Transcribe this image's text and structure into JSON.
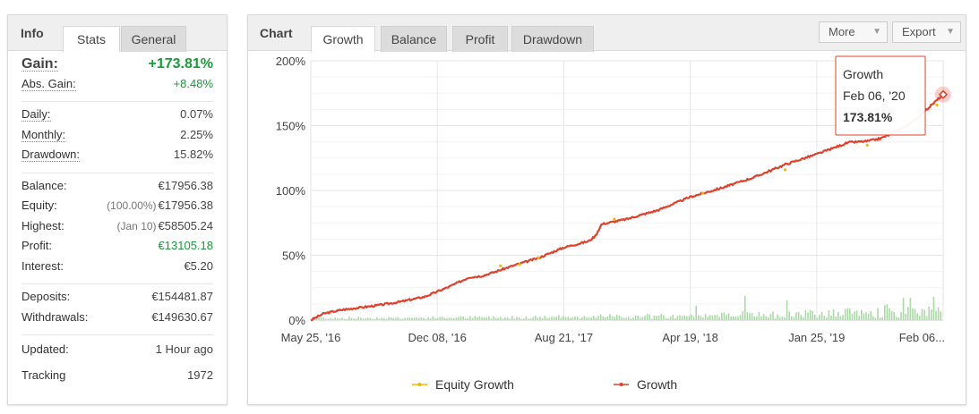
{
  "info": {
    "title": "Info",
    "tabs": [
      {
        "label": "Stats",
        "active": true
      },
      {
        "label": "General",
        "active": false
      }
    ],
    "gain": {
      "label": "Gain:",
      "value": "+173.81%"
    },
    "abs_gain": {
      "label": "Abs. Gain:",
      "value": "+8.48%"
    },
    "daily": {
      "label": "Daily:",
      "value": "0.07%"
    },
    "monthly": {
      "label": "Monthly:",
      "value": "2.25%"
    },
    "drawdown": {
      "label": "Drawdown:",
      "value": "15.82%"
    },
    "balance": {
      "label": "Balance:",
      "value": "€17956.38"
    },
    "equity": {
      "label": "Equity:",
      "note": "(100.00%)",
      "value": "€17956.38"
    },
    "highest": {
      "label": "Highest:",
      "note": "(Jan 10)",
      "value": "€58505.24"
    },
    "profit": {
      "label": "Profit:",
      "value": "€13105.18"
    },
    "interest": {
      "label": "Interest:",
      "value": "€5.20"
    },
    "deposits": {
      "label": "Deposits:",
      "value": "€154481.87"
    },
    "withdrawals": {
      "label": "Withdrawals:",
      "value": "€149630.67"
    },
    "updated": {
      "label": "Updated:",
      "value": "1 Hour ago"
    },
    "tracking": {
      "label": "Tracking",
      "value": "1972"
    }
  },
  "chart_panel": {
    "title": "Chart",
    "tabs": [
      {
        "label": "Growth",
        "active": true
      },
      {
        "label": "Balance",
        "active": false
      },
      {
        "label": "Profit",
        "active": false
      },
      {
        "label": "Drawdown",
        "active": false
      }
    ],
    "more_label": "More",
    "export_label": "Export",
    "caret_glyph": "▼"
  },
  "tooltip": {
    "series": "Growth",
    "date": "Feb 06, '20",
    "value": "173.81%"
  },
  "colors": {
    "growth": "#e2402b",
    "equity": "#f5b800",
    "bars": "#a9dba5",
    "positive": "#1a9a3a"
  },
  "chart_data": {
    "type": "line",
    "y_ticks": [
      "0%",
      "50%",
      "100%",
      "150%",
      "200%"
    ],
    "x_ticks": [
      "May 25, '16",
      "Dec 08, '16",
      "Aug 21, '17",
      "Apr 19, '18",
      "Jan 25, '19",
      "Feb 06..."
    ],
    "ylim": [
      0,
      200
    ],
    "grid": true,
    "legend_position": "bottom",
    "series": [
      {
        "name": "Growth",
        "type": "line",
        "x": [
          0.0,
          0.02,
          0.05,
          0.1,
          0.14,
          0.18,
          0.2,
          0.22,
          0.25,
          0.27,
          0.29,
          0.32,
          0.36,
          0.4,
          0.44,
          0.45,
          0.46,
          0.5,
          0.55,
          0.6,
          0.65,
          0.7,
          0.75,
          0.8,
          0.85,
          0.88,
          0.9,
          0.92,
          0.95,
          1.0
        ],
        "values": [
          0,
          5,
          8,
          11,
          14,
          18,
          22,
          26,
          33,
          34,
          37,
          42,
          48,
          56,
          61,
          65,
          74,
          78,
          85,
          95,
          102,
          110,
          120,
          128,
          137,
          138,
          140,
          144,
          152,
          174
        ]
      },
      {
        "name": "Equity Growth",
        "type": "line",
        "x": [
          0.3,
          0.33,
          0.36,
          0.48,
          0.62,
          0.75,
          0.88,
          0.99
        ],
        "values": [
          44,
          45,
          50,
          80,
          100,
          118,
          137,
          168
        ]
      }
    ]
  }
}
